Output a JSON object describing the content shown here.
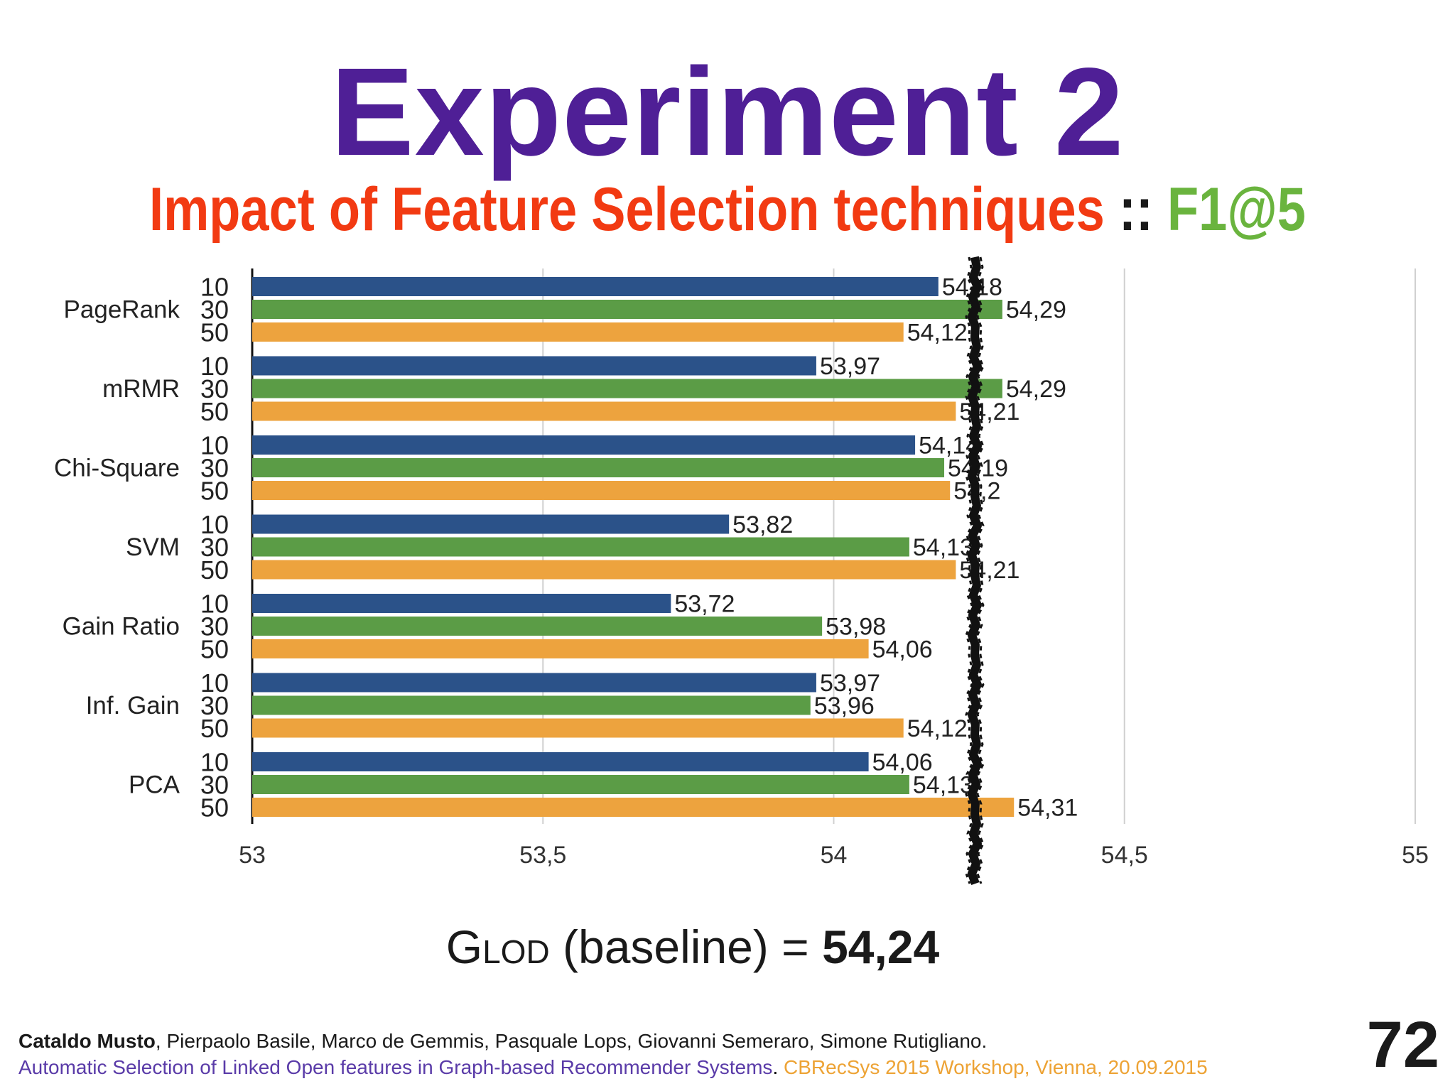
{
  "slide": {
    "title": "Experiment 2",
    "subtitle": {
      "main": "Impact of Feature Selection techniques",
      "separator": "::",
      "metric": "F1@5"
    },
    "baseline": {
      "label_main": "G",
      "label_sub": "LOD",
      "label_rest": " (baseline) = ",
      "value_text": "54,24"
    },
    "footer": {
      "lead_author": "Cataldo Musto",
      "other_authors": ", Pierpaolo Basile, Marco de Gemmis, Pasquale Lops, Giovanni Semeraro, Simone Rutigliano.",
      "paper_title": "Automatic Selection of Linked Open features in Graph-based Recommender Systems",
      "period": ".",
      "venue": "CBRecSys 2015 Workshop, Vienna, 20.09.2015"
    },
    "page_number": "72"
  },
  "chart_data": {
    "type": "bar",
    "orientation": "horizontal",
    "categories": [
      "PageRank",
      "mRMR",
      "Chi-Square",
      "SVM",
      "Gain Ratio",
      "Inf. Gain",
      "PCA"
    ],
    "series": [
      {
        "name": "10",
        "color": "#2b5289",
        "values": [
          54.18,
          53.97,
          54.14,
          53.82,
          53.72,
          53.97,
          54.06
        ],
        "labels": [
          "54,18",
          "53,97",
          "54,14",
          "53,82",
          "53,72",
          "53,97",
          "54,06"
        ]
      },
      {
        "name": "30",
        "color": "#5b9c46",
        "values": [
          54.29,
          54.29,
          54.19,
          54.13,
          53.98,
          53.96,
          54.13
        ],
        "labels": [
          "54,29",
          "54,29",
          "54,19",
          "54,13",
          "53,98",
          "53,96",
          "54,13"
        ]
      },
      {
        "name": "50",
        "color": "#eda33e",
        "values": [
          54.12,
          54.21,
          54.2,
          54.21,
          54.06,
          54.12,
          54.31
        ],
        "labels": [
          "54,12",
          "54,21",
          "54,2",
          "54,21",
          "54,06",
          "54,12",
          "54,31"
        ]
      }
    ],
    "xlim": [
      53,
      55
    ],
    "xticks": [
      53,
      53.5,
      54,
      54.5,
      55
    ],
    "xtick_labels": [
      "53",
      "53,5",
      "54",
      "54,5",
      "55"
    ],
    "grid": true,
    "baseline": 54.24,
    "baseline_style": "thick black hand-drawn vertical line"
  }
}
